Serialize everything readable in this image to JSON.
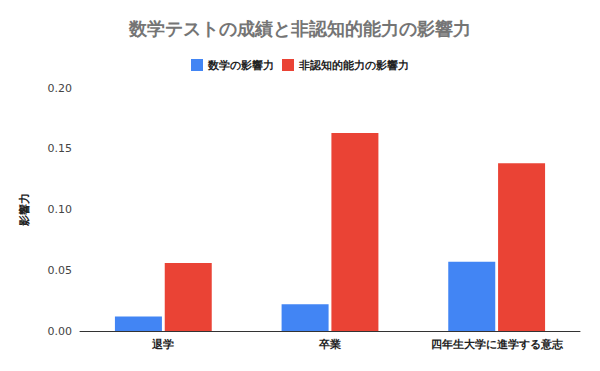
{
  "chart_data": {
    "type": "bar",
    "title": "数学テストの成績と非認知的能力の影響力",
    "y_label": "影響力",
    "categories": [
      "退学",
      "卒業",
      "四年生大学に進学する意志"
    ],
    "series": [
      {
        "name": "数学の影響力",
        "color": "#4285f4",
        "values": [
          0.012,
          0.022,
          0.057
        ]
      },
      {
        "name": "非認知的能力の影響力",
        "color": "#ea4335",
        "values": [
          0.056,
          0.163,
          0.138
        ]
      }
    ],
    "ylim": [
      0,
      0.2
    ],
    "yticks": [
      {
        "value": 0,
        "label": "0.00"
      },
      {
        "value": 0.05,
        "label": "0.05"
      },
      {
        "value": 0.1,
        "label": "0.10"
      },
      {
        "value": 0.15,
        "label": "0.15"
      },
      {
        "value": 0.2,
        "label": "0.20"
      }
    ],
    "grid": false,
    "legend": "top"
  }
}
